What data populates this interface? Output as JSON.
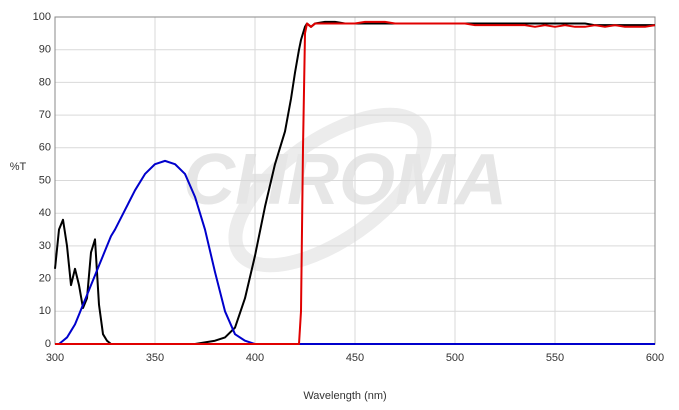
{
  "chart_data": {
    "type": "line",
    "watermark": "CHROMA",
    "xlabel": "Wavelength (nm)",
    "ylabel": "%T",
    "x": [
      300,
      302,
      304,
      306,
      308,
      310,
      312,
      314,
      316,
      318,
      320,
      322,
      324,
      326,
      328,
      330,
      335,
      340,
      345,
      350,
      355,
      360,
      365,
      370,
      375,
      380,
      385,
      390,
      395,
      400,
      405,
      410,
      415,
      418,
      420,
      422,
      423,
      424,
      425,
      426,
      428,
      430,
      435,
      440,
      445,
      450,
      455,
      460,
      465,
      470,
      475,
      480,
      485,
      490,
      495,
      500,
      505,
      510,
      515,
      520,
      525,
      530,
      535,
      540,
      545,
      550,
      555,
      560,
      565,
      570,
      575,
      580,
      585,
      590,
      595,
      600
    ],
    "series": [
      {
        "color": "#000000",
        "values": [
          23,
          35,
          38,
          30,
          18,
          23,
          18,
          11,
          14,
          28,
          32,
          12,
          3,
          1,
          0,
          0,
          0,
          0,
          0,
          0,
          0,
          0,
          0,
          0,
          0.5,
          1,
          2,
          5,
          14,
          27,
          42,
          55,
          65,
          75,
          83,
          90,
          93,
          95,
          97,
          98,
          97,
          98,
          98.5,
          98.5,
          98,
          98,
          98,
          98,
          98,
          98,
          98,
          98,
          98,
          98,
          98,
          98,
          98,
          98,
          98,
          98,
          98,
          98,
          98,
          98,
          98,
          98,
          98,
          98,
          98,
          97.5,
          97.5,
          97.5,
          97.5,
          97.5,
          97.5,
          97.5
        ]
      },
      {
        "color": "#0000cc",
        "values": [
          0,
          0,
          1,
          2,
          4,
          6,
          9,
          12,
          15,
          18,
          21,
          24,
          27,
          30,
          33,
          35,
          41,
          47,
          52,
          55,
          56,
          55,
          52,
          45,
          35,
          22,
          10,
          3,
          1,
          0,
          0,
          0,
          0,
          0,
          0,
          0,
          0,
          0,
          0,
          0,
          0,
          0,
          0,
          0,
          0,
          0,
          0,
          0,
          0,
          0,
          0,
          0,
          0,
          0,
          0,
          0,
          0,
          0,
          0,
          0,
          0,
          0,
          0,
          0,
          0,
          0,
          0,
          0,
          0,
          0,
          0,
          0,
          0,
          0,
          0,
          0
        ]
      },
      {
        "color": "#e00000",
        "values": [
          0,
          0,
          0,
          0,
          0,
          0,
          0,
          0,
          0,
          0,
          0,
          0,
          0,
          0,
          0,
          0,
          0,
          0,
          0,
          0,
          0,
          0,
          0,
          0,
          0,
          0,
          0,
          0,
          0,
          0,
          0,
          0,
          0,
          0,
          0,
          0,
          10,
          60,
          95,
          98,
          97,
          98,
          98,
          98,
          98,
          98,
          98.5,
          98.5,
          98.5,
          98,
          98,
          98,
          98,
          98,
          98,
          98,
          98,
          97.5,
          97.5,
          97.5,
          97.5,
          97.5,
          97.5,
          97,
          97.5,
          97,
          97.5,
          97,
          97,
          97.5,
          97,
          97.5,
          97,
          97,
          97,
          97.5
        ]
      }
    ],
    "xlim": [
      300,
      600
    ],
    "xticks": [
      300,
      350,
      400,
      450,
      500,
      550,
      600
    ],
    "ylim": [
      0,
      100
    ],
    "yticks": [
      0,
      10,
      20,
      30,
      40,
      50,
      60,
      70,
      80,
      90,
      100
    ],
    "grid": true
  }
}
